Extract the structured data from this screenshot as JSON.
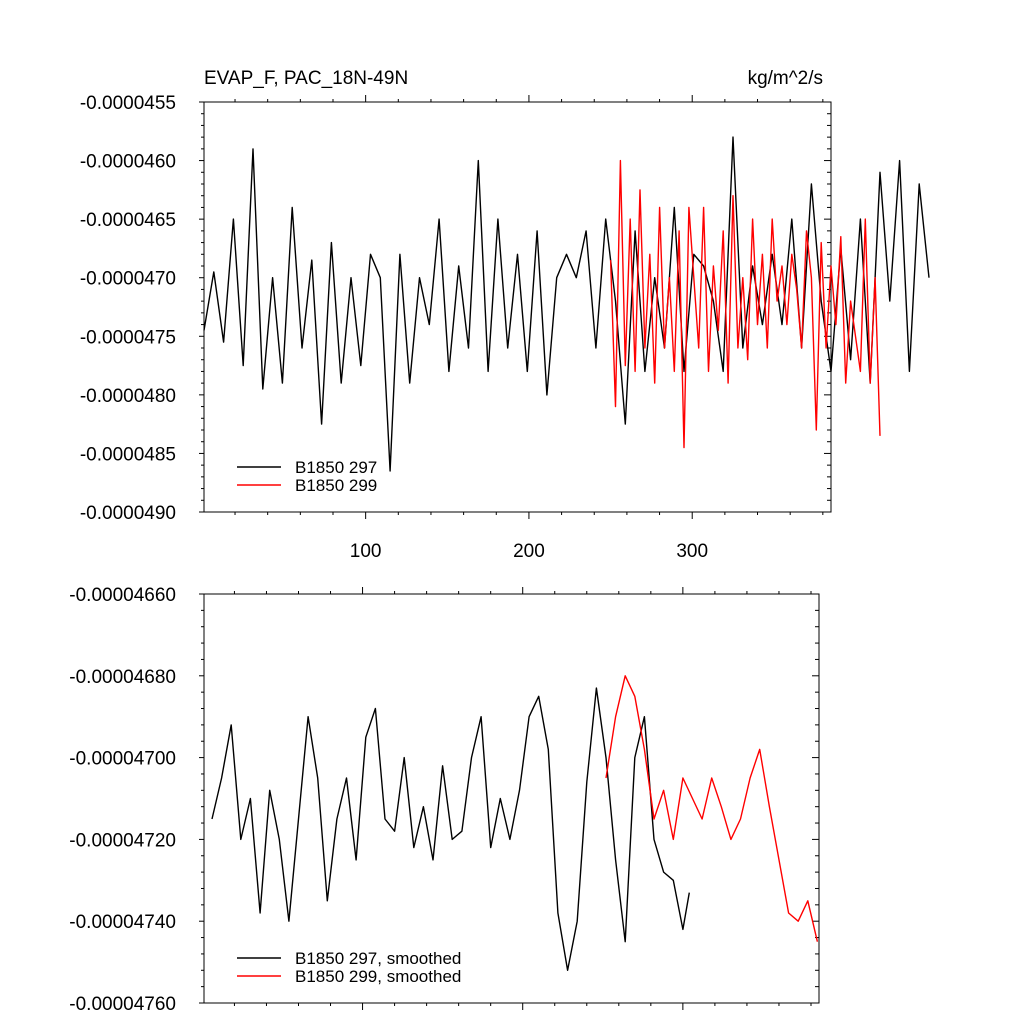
{
  "chart_data": [
    {
      "type": "line",
      "title": "EVAP_F, PAC_18N-49N",
      "units": "kg/m^2/s",
      "ylim": [
        -4.9e-05,
        -4.55e-05
      ],
      "xlim": [
        1,
        385
      ],
      "y_ticks": [
        -4.55e-05,
        -4.6e-05,
        -4.65e-05,
        -4.7e-05,
        -4.75e-05,
        -4.8e-05,
        -4.85e-05,
        -4.9e-05
      ],
      "y_tick_labels": [
        "-0.0000455",
        "-0.0000460",
        "-0.0000465",
        "-0.0000470",
        "-0.0000475",
        "-0.0000480",
        "-0.0000485",
        "-0.0000490"
      ],
      "x_ticks": [
        100,
        200,
        300
      ],
      "x_tick_labels": [
        "100",
        "200",
        "300"
      ],
      "legend_position": "bottom-left",
      "series": [
        {
          "name": "B1850 297",
          "color": "#000000",
          "x_start": 1,
          "x_step": 6,
          "values": [
            -4.745e-05,
            -4.695e-05,
            -4.755e-05,
            -4.65e-05,
            -4.775e-05,
            -4.59e-05,
            -4.795e-05,
            -4.7e-05,
            -4.79e-05,
            -4.64e-05,
            -4.76e-05,
            -4.685e-05,
            -4.825e-05,
            -4.67e-05,
            -4.79e-05,
            -4.7e-05,
            -4.775e-05,
            -4.68e-05,
            -4.7e-05,
            -4.865e-05,
            -4.68e-05,
            -4.79e-05,
            -4.7e-05,
            -4.74e-05,
            -4.65e-05,
            -4.78e-05,
            -4.69e-05,
            -4.76e-05,
            -4.6e-05,
            -4.78e-05,
            -4.65e-05,
            -4.76e-05,
            -4.68e-05,
            -4.78e-05,
            -4.66e-05,
            -4.8e-05,
            -4.7e-05,
            -4.68e-05,
            -4.7e-05,
            -4.66e-05,
            -4.76e-05,
            -4.65e-05,
            -4.72e-05,
            -4.825e-05,
            -4.66e-05,
            -4.78e-05,
            -4.7e-05,
            -4.76e-05,
            -4.64e-05,
            -4.78e-05,
            -4.68e-05,
            -4.69e-05,
            -4.72e-05,
            -4.78e-05,
            -4.58e-05,
            -4.76e-05,
            -4.69e-05,
            -4.74e-05,
            -4.68e-05,
            -4.74e-05,
            -4.65e-05,
            -4.76e-05,
            -4.62e-05,
            -4.72e-05,
            -4.78e-05,
            -4.675e-05,
            -4.77e-05,
            -4.65e-05,
            -4.79e-05,
            -4.61e-05,
            -4.72e-05,
            -4.6e-05,
            -4.78e-05,
            -4.62e-05,
            -4.7e-05
          ]
        },
        {
          "name": "B1850 299",
          "color": "#ff0000",
          "x_start": 250,
          "x_step": 3,
          "values": [
            -4.685e-05,
            -4.81e-05,
            -4.6e-05,
            -4.775e-05,
            -4.65e-05,
            -4.78e-05,
            -4.625e-05,
            -4.76e-05,
            -4.68e-05,
            -4.79e-05,
            -4.64e-05,
            -4.76e-05,
            -4.7e-05,
            -4.78e-05,
            -4.66e-05,
            -4.845e-05,
            -4.64e-05,
            -4.7e-05,
            -4.76e-05,
            -4.64e-05,
            -4.78e-05,
            -4.69e-05,
            -4.745e-05,
            -4.66e-05,
            -4.79e-05,
            -4.63e-05,
            -4.76e-05,
            -4.7e-05,
            -4.77e-05,
            -4.65e-05,
            -4.74e-05,
            -4.68e-05,
            -4.76e-05,
            -4.65e-05,
            -4.72e-05,
            -4.69e-05,
            -4.74e-05,
            -4.68e-05,
            -4.71e-05,
            -4.76e-05,
            -4.66e-05,
            -4.7e-05,
            -4.83e-05,
            -4.67e-05,
            -4.76e-05,
            -4.69e-05,
            -4.74e-05,
            -4.665e-05,
            -4.79e-05,
            -4.72e-05,
            -4.75e-05,
            -4.78e-05,
            -4.65e-05,
            -4.79e-05,
            -4.7e-05,
            -4.835e-05
          ]
        }
      ]
    },
    {
      "type": "line",
      "ylim": [
        -4.76e-05,
        -4.66e-05
      ],
      "xlim": [
        1,
        385
      ],
      "y_ticks": [
        -4.66e-05,
        -4.68e-05,
        -4.7e-05,
        -4.72e-05,
        -4.74e-05,
        -4.76e-05
      ],
      "y_tick_labels": [
        "-0.00004660",
        "-0.00004680",
        "-0.00004700",
        "-0.00004720",
        "-0.00004740",
        "-0.00004760"
      ],
      "x_ticks": [
        100,
        200,
        300
      ],
      "legend_position": "bottom-left",
      "series": [
        {
          "name": "B1850 297, smoothed",
          "color": "#000000",
          "x": [
            6,
            12,
            18,
            24,
            30,
            36,
            42,
            48,
            54,
            60,
            66,
            72,
            78,
            84,
            90,
            96,
            102,
            108,
            114,
            120,
            126,
            132,
            138,
            144,
            150,
            156,
            162,
            168,
            174,
            180,
            186,
            192,
            198,
            204,
            210,
            216,
            222,
            228,
            234,
            240,
            246,
            252,
            258,
            264,
            270,
            276,
            282,
            288,
            294,
            300,
            304
          ],
          "values": [
            -4.715e-05,
            -4.705e-05,
            -4.692e-05,
            -4.72e-05,
            -4.71e-05,
            -4.738e-05,
            -4.708e-05,
            -4.72e-05,
            -4.74e-05,
            -4.715e-05,
            -4.69e-05,
            -4.705e-05,
            -4.735e-05,
            -4.715e-05,
            -4.705e-05,
            -4.725e-05,
            -4.695e-05,
            -4.688e-05,
            -4.715e-05,
            -4.718e-05,
            -4.7e-05,
            -4.722e-05,
            -4.712e-05,
            -4.725e-05,
            -4.702e-05,
            -4.72e-05,
            -4.718e-05,
            -4.7e-05,
            -4.69e-05,
            -4.722e-05,
            -4.71e-05,
            -4.72e-05,
            -4.708e-05,
            -4.69e-05,
            -4.685e-05,
            -4.698e-05,
            -4.738e-05,
            -4.752e-05,
            -4.74e-05,
            -4.706e-05,
            -4.683e-05,
            -4.7e-05,
            -4.725e-05,
            -4.745e-05,
            -4.7e-05,
            -4.69e-05,
            -4.72e-05,
            -4.728e-05,
            -4.73e-05,
            -4.742e-05,
            -4.733e-05
          ]
        },
        {
          "name": "B1850 299, smoothed",
          "color": "#ff0000",
          "x": [
            252,
            258,
            264,
            270,
            276,
            282,
            288,
            294,
            300,
            306,
            312,
            318,
            324,
            330,
            336,
            342,
            348,
            354,
            360,
            366,
            372,
            378,
            384
          ],
          "values": [
            -4.705e-05,
            -4.69e-05,
            -4.68e-05,
            -4.685e-05,
            -4.698e-05,
            -4.715e-05,
            -4.708e-05,
            -4.72e-05,
            -4.705e-05,
            -4.71e-05,
            -4.715e-05,
            -4.705e-05,
            -4.712e-05,
            -4.72e-05,
            -4.715e-05,
            -4.705e-05,
            -4.698e-05,
            -4.712e-05,
            -4.725e-05,
            -4.738e-05,
            -4.74e-05,
            -4.735e-05,
            -4.745e-05
          ]
        }
      ]
    }
  ]
}
